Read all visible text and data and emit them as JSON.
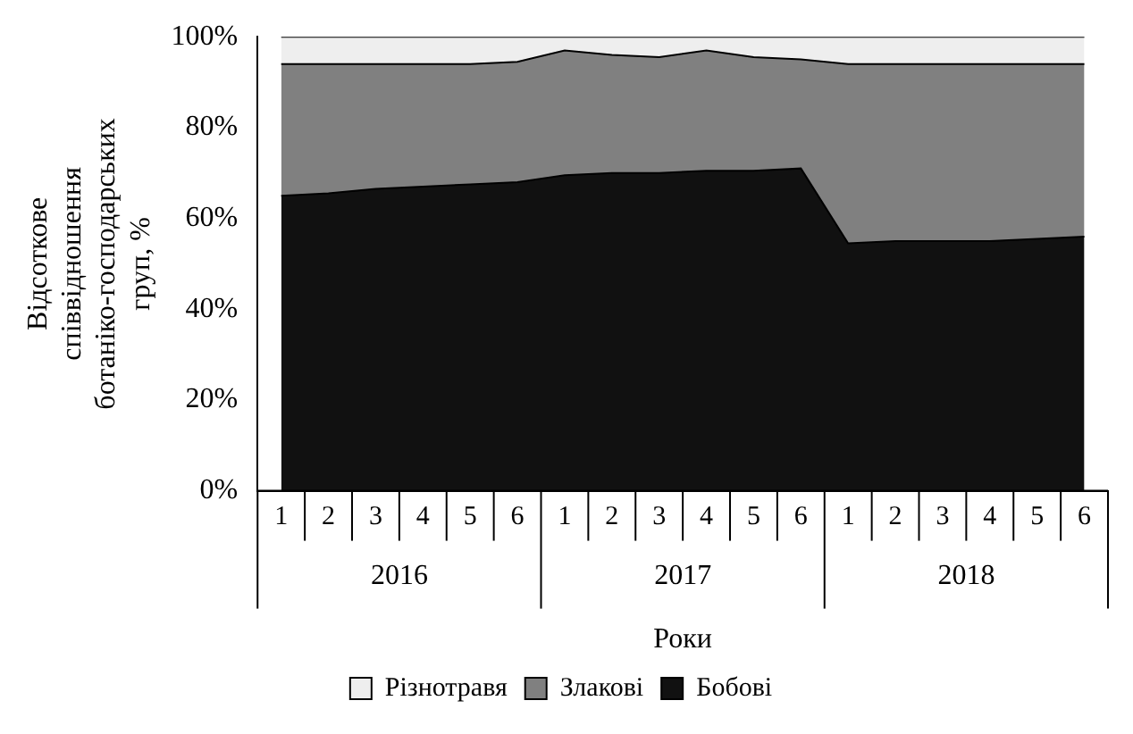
{
  "chart_data": {
    "type": "area",
    "stacked": true,
    "xlabel": "Роки",
    "ylabel": "Відсоткове співвідношення ботаніко-господарських груп, %",
    "categories": [
      "1",
      "2",
      "3",
      "4",
      "5",
      "6",
      "1",
      "2",
      "3",
      "4",
      "5",
      "6",
      "1",
      "2",
      "3",
      "4",
      "5",
      "6"
    ],
    "annotations": [
      "2016",
      "2017",
      "2018"
    ],
    "series": [
      {
        "name": "Бобові",
        "color": "#111111",
        "values": [
          65,
          65.5,
          66.5,
          67,
          67.5,
          68,
          69.5,
          70,
          70,
          70.5,
          70.5,
          71,
          54.5,
          55,
          55,
          55,
          55.5,
          56
        ]
      },
      {
        "name": "Злакові",
        "color": "#808080",
        "values": [
          29,
          28.5,
          27.5,
          27,
          26.5,
          26.5,
          27.5,
          26,
          25.5,
          26.5,
          25,
          24,
          39.5,
          39,
          39,
          39,
          38.5,
          38
        ]
      },
      {
        "name": "Різнотравя",
        "color": "#eeeeee",
        "values": [
          6,
          6,
          6,
          6,
          6,
          5.5,
          3,
          4,
          4.5,
          3,
          4.5,
          5,
          6,
          6,
          6,
          6,
          6,
          6
        ]
      }
    ],
    "ylim": [
      0,
      100
    ],
    "yticks": [
      {
        "value": 0,
        "label": "0%"
      },
      {
        "value": 20,
        "label": "20%"
      },
      {
        "value": 40,
        "label": "40%"
      },
      {
        "value": 60,
        "label": "60%"
      },
      {
        "value": 80,
        "label": "80%"
      },
      {
        "value": 100,
        "label": "100%"
      }
    ],
    "grid": false,
    "legend": "bottom"
  }
}
